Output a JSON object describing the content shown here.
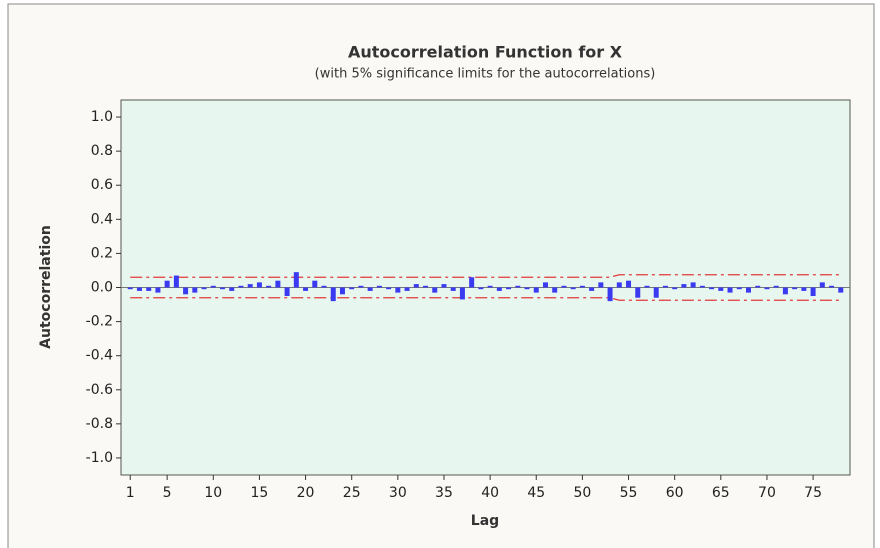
{
  "chart_data": {
    "type": "acf",
    "title": "Autocorrelation Function for X",
    "subtitle": "(with 5% significance limits for the autocorrelations)",
    "x_label": "Lag",
    "y_label": "Autocorrelation",
    "x": [
      1,
      2,
      3,
      4,
      5,
      6,
      7,
      8,
      9,
      10,
      11,
      12,
      13,
      14,
      15,
      16,
      17,
      18,
      19,
      20,
      21,
      22,
      23,
      24,
      25,
      26,
      27,
      28,
      29,
      30,
      31,
      32,
      33,
      34,
      35,
      36,
      37,
      38,
      39,
      40,
      41,
      42,
      43,
      44,
      45,
      46,
      47,
      48,
      49,
      50,
      51,
      52,
      53,
      54,
      55,
      56,
      57,
      58,
      59,
      60,
      61,
      62,
      63,
      64,
      65,
      66,
      67,
      68,
      69,
      70,
      71,
      72,
      73,
      74,
      75,
      76,
      77,
      78
    ],
    "values": [
      -0.01,
      -0.02,
      -0.02,
      -0.03,
      0.04,
      0.07,
      -0.04,
      -0.03,
      -0.01,
      0.01,
      -0.01,
      -0.02,
      0.01,
      0.02,
      0.03,
      0.01,
      0.04,
      -0.05,
      0.09,
      -0.02,
      0.04,
      0.01,
      -0.08,
      -0.04,
      -0.01,
      0.01,
      -0.02,
      0.01,
      -0.01,
      -0.03,
      -0.02,
      0.02,
      0.01,
      -0.03,
      0.02,
      -0.02,
      -0.07,
      0.06,
      -0.01,
      0.01,
      -0.02,
      -0.01,
      0.01,
      -0.01,
      -0.03,
      0.03,
      -0.03,
      0.01,
      -0.01,
      0.01,
      -0.02,
      0.03,
      -0.08,
      0.03,
      0.04,
      -0.06,
      0.01,
      -0.06,
      0.01,
      -0.01,
      0.02,
      0.03,
      0.01,
      -0.01,
      -0.02,
      -0.03,
      -0.01,
      -0.03,
      0.01,
      -0.01,
      0.01,
      -0.04,
      -0.01,
      -0.02,
      -0.05,
      0.03,
      0.01,
      -0.03
    ],
    "upper_limit": [
      0.06,
      0.06,
      0.06,
      0.06,
      0.06,
      0.06,
      0.06,
      0.06,
      0.06,
      0.06,
      0.06,
      0.06,
      0.06,
      0.06,
      0.06,
      0.06,
      0.06,
      0.06,
      0.06,
      0.06,
      0.06,
      0.06,
      0.06,
      0.06,
      0.06,
      0.06,
      0.06,
      0.06,
      0.06,
      0.06,
      0.06,
      0.06,
      0.06,
      0.06,
      0.06,
      0.06,
      0.06,
      0.06,
      0.06,
      0.06,
      0.06,
      0.06,
      0.06,
      0.06,
      0.06,
      0.06,
      0.06,
      0.06,
      0.06,
      0.06,
      0.06,
      0.06,
      0.06,
      0.075,
      0.075,
      0.075,
      0.075,
      0.075,
      0.075,
      0.075,
      0.075,
      0.075,
      0.075,
      0.075,
      0.075,
      0.075,
      0.075,
      0.075,
      0.075,
      0.075,
      0.075,
      0.075,
      0.075,
      0.075,
      0.075,
      0.075,
      0.075,
      0.075
    ],
    "lower_limit": [
      -0.06,
      -0.06,
      -0.06,
      -0.06,
      -0.06,
      -0.06,
      -0.06,
      -0.06,
      -0.06,
      -0.06,
      -0.06,
      -0.06,
      -0.06,
      -0.06,
      -0.06,
      -0.06,
      -0.06,
      -0.06,
      -0.06,
      -0.06,
      -0.06,
      -0.06,
      -0.06,
      -0.06,
      -0.06,
      -0.06,
      -0.06,
      -0.06,
      -0.06,
      -0.06,
      -0.06,
      -0.06,
      -0.06,
      -0.06,
      -0.06,
      -0.06,
      -0.06,
      -0.06,
      -0.06,
      -0.06,
      -0.06,
      -0.06,
      -0.06,
      -0.06,
      -0.06,
      -0.06,
      -0.06,
      -0.06,
      -0.06,
      -0.06,
      -0.06,
      -0.06,
      -0.06,
      -0.075,
      -0.075,
      -0.075,
      -0.075,
      -0.075,
      -0.075,
      -0.075,
      -0.075,
      -0.075,
      -0.075,
      -0.075,
      -0.075,
      -0.075,
      -0.075,
      -0.075,
      -0.075,
      -0.075,
      -0.075,
      -0.075,
      -0.075,
      -0.075,
      -0.075,
      -0.075,
      -0.075,
      -0.075
    ],
    "color": "#3a3af0",
    "limit_color": "#e03a3a",
    "xlim": [
      0,
      79
    ],
    "ylim": [
      -1.1,
      1.1
    ],
    "xticks": [
      1,
      5,
      10,
      15,
      20,
      25,
      30,
      35,
      40,
      45,
      50,
      55,
      60,
      65,
      70,
      75
    ],
    "yticks": [
      {
        "value": 1.0,
        "label": "1.0"
      },
      {
        "value": 0.8,
        "label": "0.8"
      },
      {
        "value": 0.6,
        "label": "0.6"
      },
      {
        "value": 0.4,
        "label": "0.4"
      },
      {
        "value": 0.2,
        "label": "0.2"
      },
      {
        "value": 0,
        "label": "0.0"
      },
      {
        "value": -0.2,
        "label": "-0.2"
      },
      {
        "value": -0.4,
        "label": "-0.4"
      },
      {
        "value": -0.6,
        "label": "-0.6"
      },
      {
        "value": -0.8,
        "label": "-0.8"
      },
      {
        "value": -1.0,
        "label": "-1.0"
      }
    ]
  }
}
